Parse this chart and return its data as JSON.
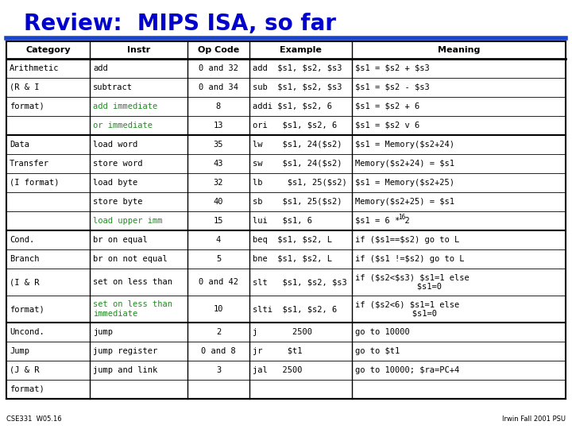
{
  "title": "Review:  MIPS ISA, so far",
  "title_color": "#0000CC",
  "title_fontsize": 20,
  "header_line_color": "#1a44cc",
  "bg_color": "#ffffff",
  "footer_left": "CSE331  W05.16",
  "footer_right": "Irwin Fall 2001 PSU",
  "col_headers": [
    "Category",
    "Instr",
    "Op Code",
    "Example",
    "Meaning"
  ],
  "green_color": "#228B22",
  "black_color": "#000000",
  "rows": [
    {
      "category": "Arithmetic",
      "instr": "add",
      "instr_green": false,
      "opcode": "0 and 32",
      "example": "add  $s1, $s2, $s3",
      "meaning": "$s1 = $s2 + $s3",
      "tall": false,
      "section_start": true
    },
    {
      "category": "(R & I",
      "instr": "subtract",
      "instr_green": false,
      "opcode": "0 and 34",
      "example": "sub  $s1, $s2, $s3",
      "meaning": "$s1 = $s2 - $s3",
      "tall": false,
      "section_start": false
    },
    {
      "category": "format)",
      "instr": "add immediate",
      "instr_green": true,
      "opcode": "8",
      "example": "addi $s1, $s2, 6",
      "meaning": "$s1 = $s2 + 6",
      "tall": false,
      "section_start": false
    },
    {
      "category": "",
      "instr": "or immediate",
      "instr_green": true,
      "opcode": "13",
      "example": "ori   $s1, $s2, 6",
      "meaning": "$s1 = $s2 v 6",
      "tall": false,
      "section_start": false
    },
    {
      "category": "Data",
      "instr": "load word",
      "instr_green": false,
      "opcode": "35",
      "example": "lw    $s1, 24($s2)",
      "meaning": "$s1 = Memory($s2+24)",
      "tall": false,
      "section_start": true
    },
    {
      "category": "Transfer",
      "instr": "store word",
      "instr_green": false,
      "opcode": "43",
      "example": "sw    $s1, 24($s2)",
      "meaning": "Memory($s2+24) = $s1",
      "tall": false,
      "section_start": false
    },
    {
      "category": "(I format)",
      "instr": "load byte",
      "instr_green": false,
      "opcode": "32",
      "example": "lb     $s1, 25($s2)",
      "meaning": "$s1 = Memory($s2+25)",
      "tall": false,
      "section_start": false
    },
    {
      "category": "",
      "instr": "store byte",
      "instr_green": false,
      "opcode": "40",
      "example": "sb    $s1, 25($s2)",
      "meaning": "Memory($s2+25) = $s1",
      "tall": false,
      "section_start": false
    },
    {
      "category": "",
      "instr": "load upper imm",
      "instr_green": true,
      "opcode": "15",
      "example": "lui   $s1, 6",
      "meaning": "$s1 = 6 * 2^16",
      "tall": false,
      "section_start": false
    },
    {
      "category": "Cond.",
      "instr": "br on equal",
      "instr_green": false,
      "opcode": "4",
      "example": "beq  $s1, $s2, L",
      "meaning": "if ($s1==$s2) go to L",
      "tall": false,
      "section_start": true
    },
    {
      "category": "Branch",
      "instr": "br on not equal",
      "instr_green": false,
      "opcode": "5",
      "example": "bne  $s1, $s2, L",
      "meaning": "if ($s1 !=$s2) go to L",
      "tall": false,
      "section_start": false
    },
    {
      "category": "(I & R",
      "instr": "set on less than",
      "instr_green": false,
      "opcode": "0 and 42",
      "example": "slt   $s1, $s2, $s3",
      "meaning": "if ($s2<$s3) $s1=1 else\n       $s1=0",
      "tall": true,
      "section_start": false
    },
    {
      "category": "format)",
      "instr": "set on less than\nimmediate",
      "instr_green": true,
      "opcode": "10",
      "example": "slti  $s1, $s2, 6",
      "meaning": "if ($s2<6) $s1=1 else\n       $s1=0",
      "tall": true,
      "section_start": false
    },
    {
      "category": "Uncond.",
      "instr": "jump",
      "instr_green": false,
      "opcode": "2",
      "example": "j       2500",
      "meaning": "go to 10000",
      "tall": false,
      "section_start": true
    },
    {
      "category": "Jump",
      "instr": "jump register",
      "instr_green": false,
      "opcode": "0 and 8",
      "example": "jr     $t1",
      "meaning": "go to $t1",
      "tall": false,
      "section_start": false
    },
    {
      "category": "(J & R",
      "instr": "jump and link",
      "instr_green": false,
      "opcode": "3",
      "example": "jal   2500",
      "meaning": "go to 10000; $ra=PC+4",
      "tall": false,
      "section_start": false
    },
    {
      "category": "format)",
      "instr": "",
      "instr_green": false,
      "opcode": "",
      "example": "",
      "meaning": "",
      "tall": false,
      "section_start": false
    }
  ]
}
